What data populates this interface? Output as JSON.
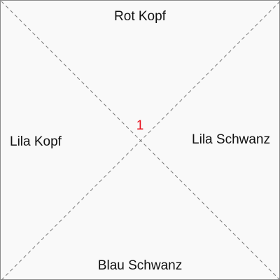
{
  "tile": {
    "number": "1",
    "number_color": "#e8101c",
    "border_color": "#8a8a8a",
    "diagonal_style": "dashed",
    "edges": {
      "top": "Rot Kopf",
      "right": "Lila Schwanz",
      "bottom": "Blau Schwanz",
      "left": "Lila Kopf"
    }
  }
}
